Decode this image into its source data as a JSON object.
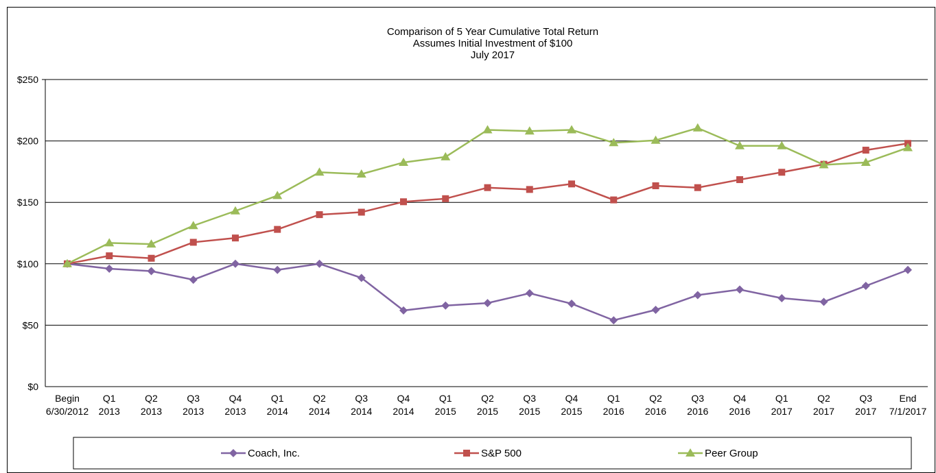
{
  "chart_data": {
    "type": "line",
    "title": [
      "Comparison  of 5 Year Cumulative  Total Return",
      "Assumes Initial Investment  of $100",
      "July 2017"
    ],
    "ylim": [
      0,
      250
    ],
    "yticks": [
      0,
      50,
      100,
      150,
      200,
      250
    ],
    "ytick_labels": [
      "$0",
      "$50",
      "$100",
      "$150",
      "$200",
      "$250"
    ],
    "grid": "horizontal",
    "categories": [
      [
        "Begin",
        "6/30/2012"
      ],
      [
        "Q1",
        "2013"
      ],
      [
        "Q2",
        "2013"
      ],
      [
        "Q3",
        "2013"
      ],
      [
        "Q4",
        "2013"
      ],
      [
        "Q1",
        "2014"
      ],
      [
        "Q2",
        "2014"
      ],
      [
        "Q3",
        "2014"
      ],
      [
        "Q4",
        "2014"
      ],
      [
        "Q1",
        "2015"
      ],
      [
        "Q2",
        "2015"
      ],
      [
        "Q3",
        "2015"
      ],
      [
        "Q4",
        "2015"
      ],
      [
        "Q1",
        "2016"
      ],
      [
        "Q2",
        "2016"
      ],
      [
        "Q3",
        "2016"
      ],
      [
        "Q4",
        "2016"
      ],
      [
        "Q1",
        "2017"
      ],
      [
        "Q2",
        "2017"
      ],
      [
        "Q3",
        "2017"
      ],
      [
        "End",
        "7/1/2017"
      ]
    ],
    "legend_position": "bottom",
    "series": [
      {
        "name": "Coach, Inc.",
        "color": "#8064A2",
        "marker": "diamond",
        "values": [
          100,
          96,
          94,
          87,
          100,
          95,
          100,
          88.5,
          62,
          66,
          68,
          76,
          67.5,
          54,
          62.5,
          74.5,
          79,
          72,
          69,
          82,
          95
        ]
      },
      {
        "name": "S&P 500",
        "color": "#C0504D",
        "marker": "square",
        "values": [
          100,
          106.5,
          104.5,
          117.5,
          121,
          128,
          140,
          142,
          150.5,
          153,
          162,
          160.5,
          165,
          152,
          163.5,
          162,
          168.5,
          174.5,
          181,
          192.5,
          198
        ]
      },
      {
        "name": "Peer Group",
        "color": "#9BBB59",
        "marker": "triangle",
        "values": [
          100,
          117,
          116,
          131,
          143,
          155.5,
          174.5,
          173,
          182.5,
          187,
          209,
          208,
          209,
          198.5,
          200.5,
          210.5,
          196,
          196,
          180.5,
          182.5,
          194.5
        ]
      }
    ]
  }
}
